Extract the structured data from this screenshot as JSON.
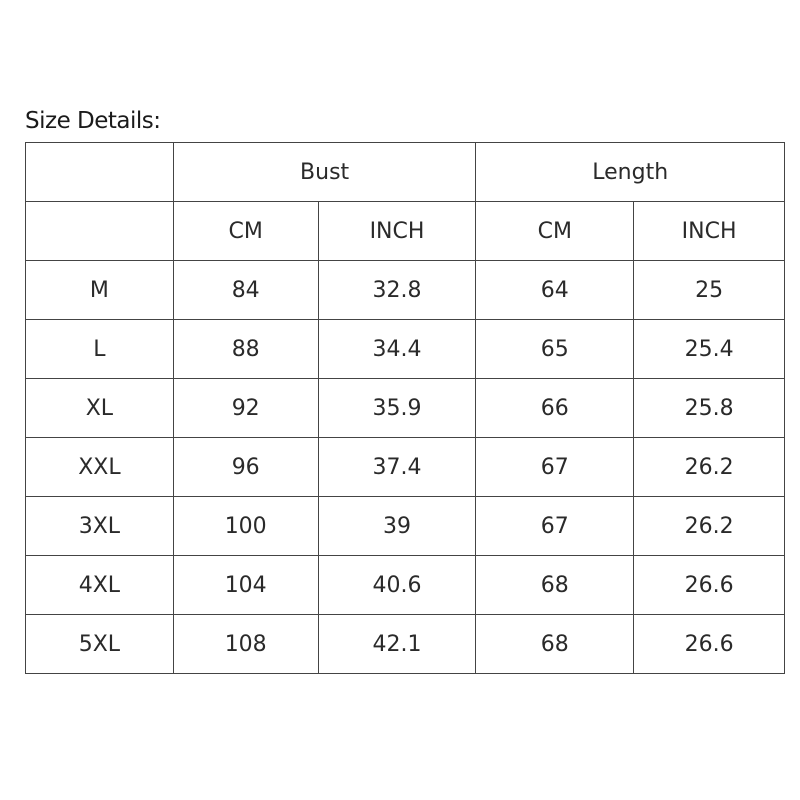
{
  "title": "Size Details:",
  "groups": [
    "Bust",
    "Length"
  ],
  "subheaders": [
    "CM",
    "INCH",
    "CM",
    "INCH"
  ],
  "rows": [
    [
      "M",
      "84",
      "32.8",
      "64",
      "25"
    ],
    [
      "L",
      "88",
      "34.4",
      "65",
      "25.4"
    ],
    [
      "XL",
      "92",
      "35.9",
      "66",
      "25.8"
    ],
    [
      "XXL",
      "96",
      "37.4",
      "67",
      "26.2"
    ],
    [
      "3XL",
      "100",
      "39",
      "67",
      "26.2"
    ],
    [
      "4XL",
      "104",
      "40.6",
      "68",
      "26.6"
    ],
    [
      "5XL",
      "108",
      "42.1",
      "68",
      "26.6"
    ]
  ]
}
